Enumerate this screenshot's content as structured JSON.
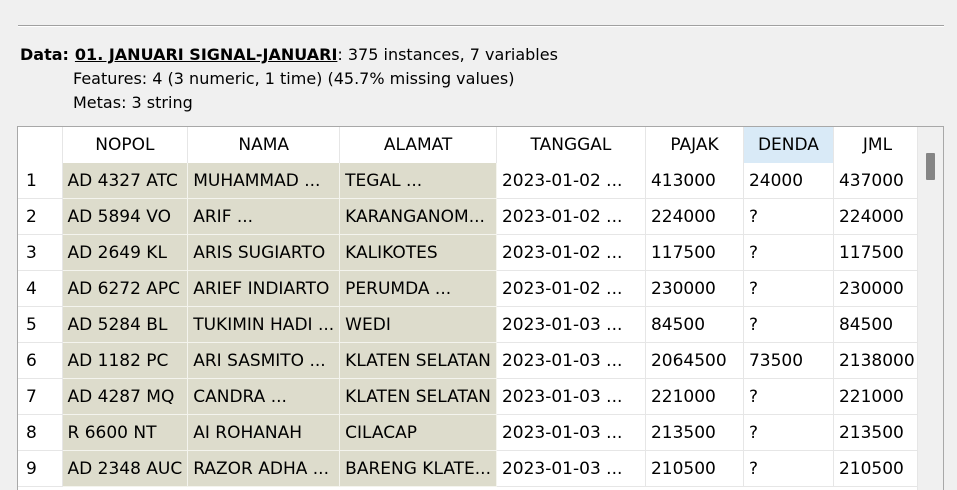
{
  "summary": {
    "data_label": "Data:",
    "dataset_name": "01. JANUARI SIGNAL-JANUARI",
    "instances_text": ": 375 instances, 7 variables",
    "features_text": "Features: 4 (3 numeric, 1 time) (45.7% missing values)",
    "metas_text": "Metas: 3 string"
  },
  "table": {
    "columns": [
      "NOPOL",
      "NAMA",
      "ALAMAT",
      "TANGGAL",
      "PAJAK",
      "DENDA",
      "JML"
    ],
    "rows": [
      {
        "idx": "1",
        "cells": [
          "AD 4327 ATC",
          "MUHAMMAD ...",
          "TEGAL ...",
          "2023-01-02 ...",
          "413000",
          "24000",
          "437000"
        ]
      },
      {
        "idx": "2",
        "cells": [
          "AD 5894 VO",
          "ARIF ...",
          "KARANGANOM...",
          "2023-01-02 ...",
          "224000",
          "?",
          "224000"
        ]
      },
      {
        "idx": "3",
        "cells": [
          "AD 2649 KL",
          "ARIS SUGIARTO",
          "KALIKOTES",
          "2023-01-02 ...",
          "117500",
          "?",
          "117500"
        ]
      },
      {
        "idx": "4",
        "cells": [
          "AD 6272 APC",
          "ARIEF INDIARTO",
          "PERUMDA ...",
          "2023-01-02 ...",
          "230000",
          "?",
          "230000"
        ]
      },
      {
        "idx": "5",
        "cells": [
          "AD 5284 BL",
          "TUKIMIN HADI ...",
          "WEDI",
          "2023-01-03 ...",
          "84500",
          "?",
          "84500"
        ]
      },
      {
        "idx": "6",
        "cells": [
          "AD 1182 PC",
          "ARI SASMITO ...",
          "KLATEN SELATAN",
          "2023-01-03 ...",
          "2064500",
          "73500",
          "2138000"
        ]
      },
      {
        "idx": "7",
        "cells": [
          "AD 4287 MQ",
          "CANDRA ...",
          "KLATEN SELATAN",
          "2023-01-03 ...",
          "221000",
          "?",
          "221000"
        ]
      },
      {
        "idx": "8",
        "cells": [
          "R 6600 NT",
          "AI ROHANAH",
          "CILACAP",
          "2023-01-03 ...",
          "213500",
          "?",
          "213500"
        ]
      },
      {
        "idx": "9",
        "cells": [
          "AD 2348 AUC",
          "RAZOR ADHA ...",
          "BARENG KLATE...",
          "2023-01-03 ...",
          "210500",
          "?",
          "210500"
        ]
      }
    ]
  },
  "colors": {
    "meta_bg": "#dddccc",
    "selected_header_bg": "#d9eaf7"
  }
}
